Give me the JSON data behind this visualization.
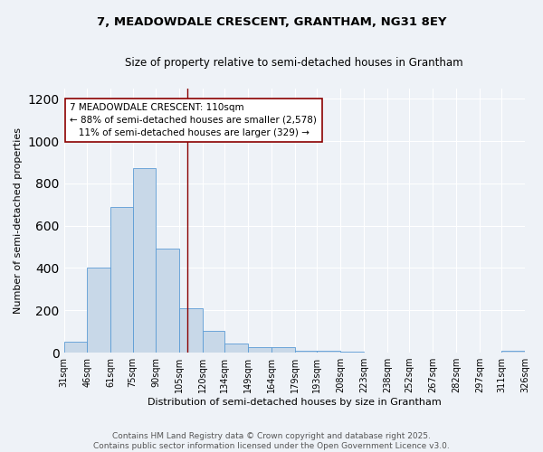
{
  "title_line1": "7, MEADOWDALE CRESCENT, GRANTHAM, NG31 8EY",
  "title_line2": "Size of property relative to semi-detached houses in Grantham",
  "xlabel": "Distribution of semi-detached houses by size in Grantham",
  "ylabel": "Number of semi-detached properties",
  "bar_edges": [
    31,
    46,
    61,
    75,
    90,
    105,
    120,
    134,
    149,
    164,
    179,
    193,
    208,
    223,
    238,
    252,
    267,
    282,
    297,
    311,
    326
  ],
  "bar_heights": [
    50,
    400,
    690,
    870,
    490,
    210,
    105,
    45,
    28,
    27,
    10,
    8,
    3,
    2,
    1,
    1,
    1,
    0,
    0,
    10
  ],
  "bar_color": "#c8d8e8",
  "bar_edge_color": "#5b9bd5",
  "vline_x": 110,
  "vline_color": "#8b0000",
  "annotation_line1": "7 MEADOWDALE CRESCENT: 110sqm",
  "annotation_line2": "← 88% of semi-detached houses are smaller (2,578)",
  "annotation_line3": "   11% of semi-detached houses are larger (329) →",
  "annotation_box_color": "#ffffff",
  "annotation_border_color": "#8b0000",
  "ylim": [
    0,
    1250
  ],
  "yticks": [
    0,
    200,
    400,
    600,
    800,
    1000,
    1200
  ],
  "tick_labels": [
    "31sqm",
    "46sqm",
    "61sqm",
    "75sqm",
    "90sqm",
    "105sqm",
    "120sqm",
    "134sqm",
    "149sqm",
    "164sqm",
    "179sqm",
    "193sqm",
    "208sqm",
    "223sqm",
    "238sqm",
    "252sqm",
    "267sqm",
    "282sqm",
    "297sqm",
    "311sqm",
    "326sqm"
  ],
  "footnote": "Contains HM Land Registry data © Crown copyright and database right 2025.\nContains public sector information licensed under the Open Government Licence v3.0.",
  "bg_color": "#eef2f7",
  "grid_color": "#ffffff",
  "title_fontsize": 9.5,
  "subtitle_fontsize": 8.5,
  "axis_label_fontsize": 8,
  "tick_fontsize": 7,
  "annotation_fontsize": 7.5,
  "footnote_fontsize": 6.5
}
